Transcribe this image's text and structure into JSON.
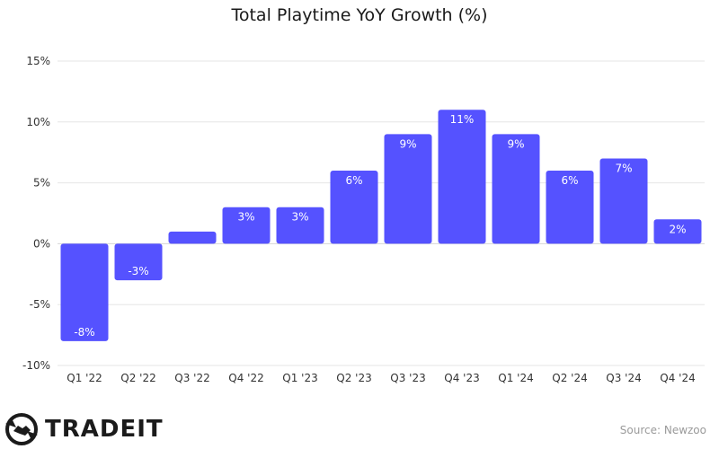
{
  "chart_data": {
    "type": "bar",
    "title": "Total Playtime YoY Growth (%)",
    "categories": [
      "Q1 '22",
      "Q2 '22",
      "Q3 '22",
      "Q4 '22",
      "Q1 '23",
      "Q2 '23",
      "Q3 '23",
      "Q4 '23",
      "Q1 '24",
      "Q2 '24",
      "Q3 '24",
      "Q4 '24"
    ],
    "values": [
      -8,
      -3,
      1,
      3,
      3,
      6,
      9,
      11,
      9,
      6,
      7,
      2
    ],
    "data_labels": [
      "-8%",
      "-3%",
      "",
      "3%",
      "3%",
      "6%",
      "9%",
      "11%",
      "9%",
      "6%",
      "7%",
      "2%"
    ],
    "y_ticks": [
      15,
      10,
      5,
      0,
      -5,
      -10
    ],
    "y_tick_labels": [
      "15%",
      "10%",
      "5%",
      "0%",
      "-5%",
      "-10%"
    ],
    "ylim": [
      -10,
      15
    ],
    "xlabel": "",
    "ylabel": "",
    "grid": true,
    "bar_color": "#5552ff"
  },
  "brand": {
    "name": "TRADEIT",
    "logo_icon": "handshake-logo-icon"
  },
  "source": "Source: Newzoo"
}
